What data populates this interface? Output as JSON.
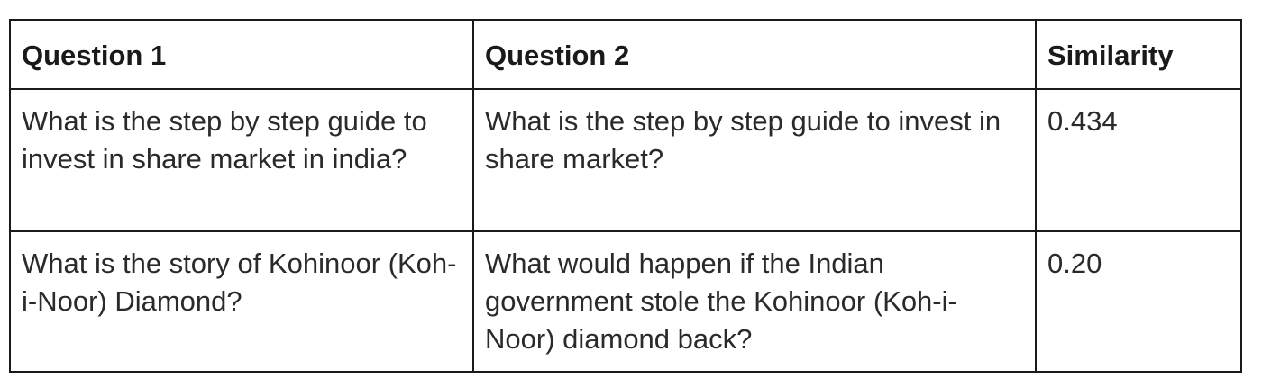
{
  "table": {
    "headers": [
      "Question 1",
      "Question 2",
      "Similarity"
    ],
    "rows": [
      {
        "question1": "What is the step by step guide to invest in share market in india?",
        "question2": "What is the step by step guide to invest in share market?",
        "similarity": "0.434"
      },
      {
        "question1": "What is the story of Kohinoor (Koh-i-Noor) Diamond?",
        "question2": "What would happen if the Indian government stole the Kohinoor (Koh-i-Noor) diamond back?",
        "similarity": "0.20"
      }
    ]
  }
}
